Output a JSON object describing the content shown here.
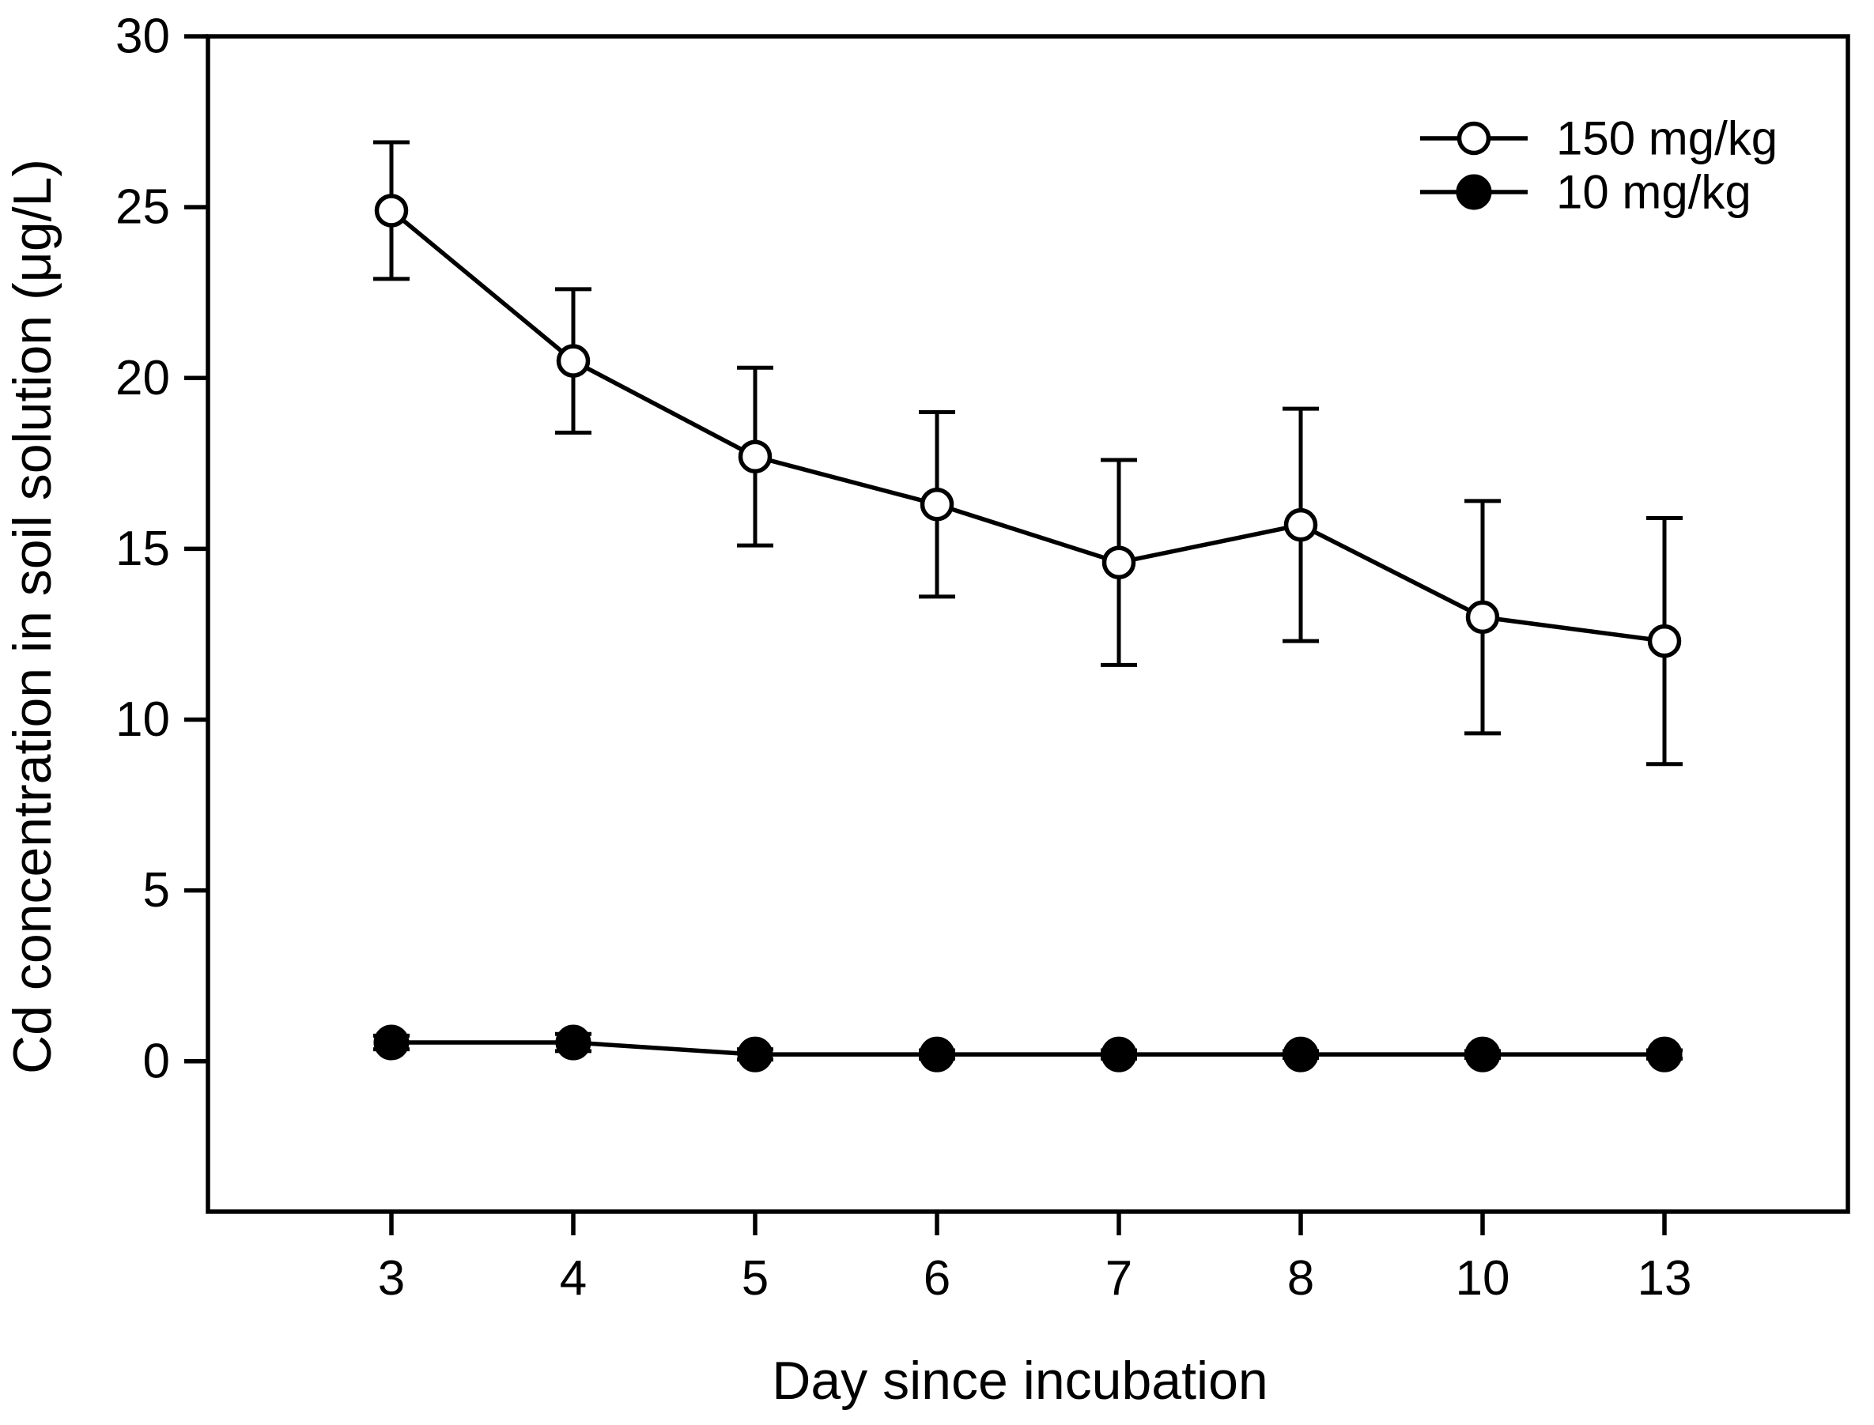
{
  "figure": {
    "background_color": "#ffffff",
    "ink_color": "#000000"
  },
  "chart_data": {
    "type": "line",
    "title": "",
    "xlabel": "Day since incubation",
    "ylabel": "Cd concentration in soil solution (μg/L)",
    "x_tick_labels": [
      "3",
      "4",
      "5",
      "6",
      "7",
      "8",
      "10",
      "13"
    ],
    "x_values": [
      3,
      4,
      5,
      6,
      7,
      8,
      10,
      13
    ],
    "x_axis_spacing": "categorical-even",
    "yticks": [
      0,
      5,
      10,
      15,
      20,
      25,
      30
    ],
    "ylim": [
      -4.4,
      30
    ],
    "grid": false,
    "legend_position": "top-right",
    "error_bars": true,
    "series": [
      {
        "name": "150 mg/kg",
        "marker": "open-circle",
        "line_style": "solid",
        "color": "#000000",
        "values": [
          24.9,
          20.5,
          17.7,
          16.3,
          14.6,
          15.7,
          13.0,
          12.3
        ],
        "errors": [
          2.0,
          2.1,
          2.6,
          2.7,
          3.0,
          3.4,
          3.4,
          3.6
        ]
      },
      {
        "name": "10 mg/kg",
        "marker": "filled-circle",
        "line_style": "solid",
        "color": "#000000",
        "values": [
          0.55,
          0.55,
          0.2,
          0.2,
          0.2,
          0.2,
          0.2,
          0.2
        ],
        "errors": [
          0.2,
          0.25,
          0.15,
          0.12,
          0.12,
          0.1,
          0.1,
          0.12
        ]
      }
    ]
  }
}
